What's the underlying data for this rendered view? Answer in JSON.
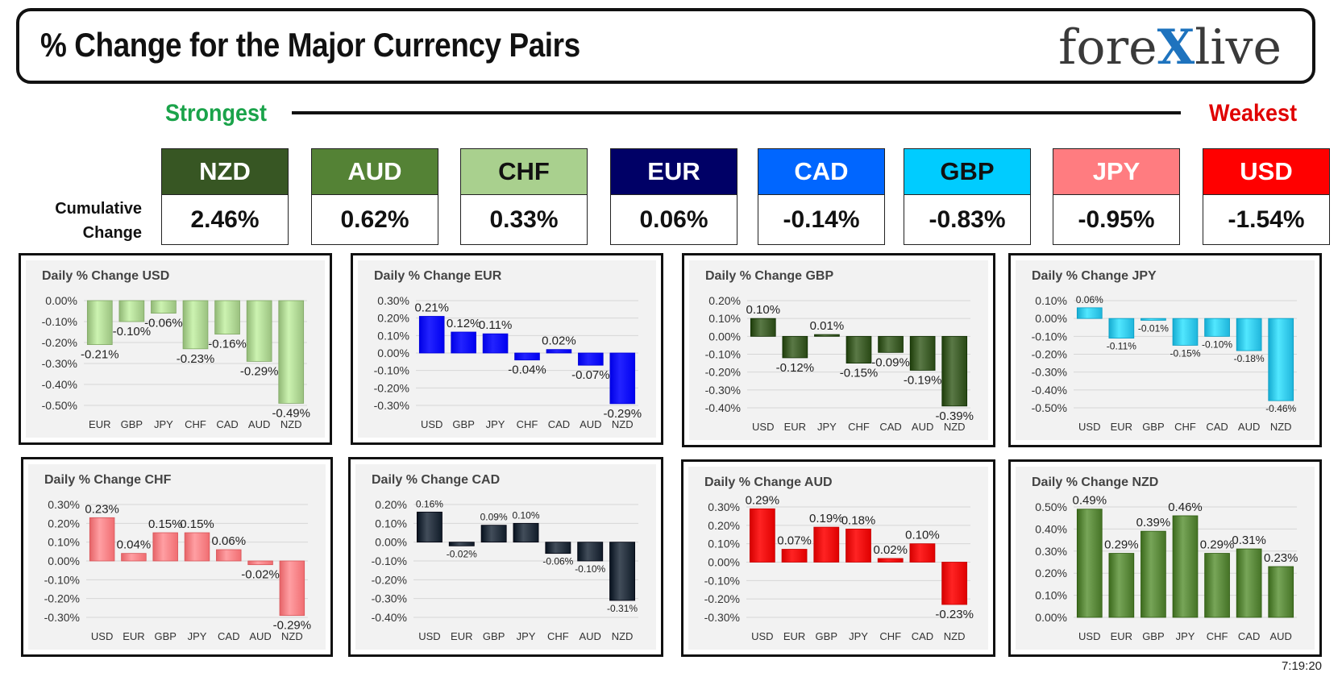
{
  "header": {
    "title": "% Change for the Major Currency Pairs",
    "logo_left": "fore",
    "logo_x": "X",
    "logo_right": "live"
  },
  "ranking": {
    "strongest_label": "Strongest",
    "weakest_label": "Weakest",
    "cumulative_label_line1": "Cumulative",
    "cumulative_label_line2": "Change",
    "currencies": [
      {
        "code": "NZD",
        "value": "2.46%",
        "bg": "#375623",
        "fg": "#ffffff"
      },
      {
        "code": "AUD",
        "value": "0.62%",
        "bg": "#548235",
        "fg": "#ffffff"
      },
      {
        "code": "CHF",
        "value": "0.33%",
        "bg": "#a9d08e",
        "fg": "#111111"
      },
      {
        "code": "EUR",
        "value": "0.06%",
        "bg": "#000066",
        "fg": "#ffffff"
      },
      {
        "code": "CAD",
        "value": "-0.14%",
        "bg": "#0066ff",
        "fg": "#ffffff"
      },
      {
        "code": "GBP",
        "value": "-0.83%",
        "bg": "#00ccff",
        "fg": "#111111"
      },
      {
        "code": "JPY",
        "value": "-0.95%",
        "bg": "#ff7c80",
        "fg": "#ffffff"
      },
      {
        "code": "USD",
        "value": "-1.54%",
        "bg": "#ff0000",
        "fg": "#ffffff"
      }
    ]
  },
  "timestamp": "7:19:20",
  "chart_data": [
    {
      "type": "bar",
      "title": "Daily % Change USD",
      "categories": [
        "EUR",
        "GBP",
        "JPY",
        "CHF",
        "CAD",
        "AUD",
        "NZD"
      ],
      "values": [
        -0.21,
        -0.1,
        -0.06,
        -0.23,
        -0.16,
        -0.29,
        -0.49
      ],
      "labels": [
        "-0.21%",
        "-0.10%",
        "-0.06%",
        "-0.23%",
        "-0.16%",
        "-0.29%",
        "-0.49%"
      ],
      "ylim": [
        -0.5,
        0.0
      ],
      "yticks": [
        0.0,
        -0.1,
        -0.2,
        -0.3,
        -0.4,
        -0.5
      ],
      "ytick_labels": [
        "0.00%",
        "-0.10%",
        "-0.20%",
        "-0.30%",
        "-0.40%",
        "-0.50%"
      ],
      "color": "#a9d08e",
      "grid": true
    },
    {
      "type": "bar",
      "title": "Daily % Change EUR",
      "categories": [
        "USD",
        "GBP",
        "JPY",
        "CHF",
        "CAD",
        "AUD",
        "NZD"
      ],
      "values": [
        0.21,
        0.12,
        0.11,
        -0.04,
        0.02,
        -0.07,
        -0.29
      ],
      "labels": [
        "0.21%",
        "0.12%",
        "0.11%",
        "-0.04%",
        "0.02%",
        "-0.07%",
        "-0.29%"
      ],
      "ylim": [
        -0.3,
        0.3
      ],
      "yticks": [
        0.3,
        0.2,
        0.1,
        0.0,
        -0.1,
        -0.2,
        -0.3
      ],
      "ytick_labels": [
        "0.30%",
        "0.20%",
        "0.10%",
        "0.00%",
        "-0.10%",
        "-0.20%",
        "-0.30%"
      ],
      "color": "#0000ff",
      "grid": true
    },
    {
      "type": "bar",
      "title": "Daily % Change GBP",
      "categories": [
        "USD",
        "EUR",
        "JPY",
        "CHF",
        "CAD",
        "AUD",
        "NZD"
      ],
      "values": [
        0.1,
        -0.12,
        0.01,
        -0.15,
        -0.09,
        -0.19,
        -0.39
      ],
      "labels": [
        "0.10%",
        "-0.12%",
        "0.01%",
        "-0.15%",
        "-0.09%",
        "-0.19%",
        "-0.39%"
      ],
      "ylim": [
        -0.4,
        0.2
      ],
      "yticks": [
        0.2,
        0.1,
        0.0,
        -0.1,
        -0.2,
        -0.3,
        -0.4
      ],
      "ytick_labels": [
        "0.20%",
        "0.10%",
        "0.00%",
        "-0.10%",
        "-0.20%",
        "-0.30%",
        "-0.40%"
      ],
      "color": "#375623",
      "grid": true
    },
    {
      "type": "bar",
      "title": "Daily % Change JPY",
      "categories": [
        "USD",
        "EUR",
        "GBP",
        "CHF",
        "CAD",
        "AUD",
        "NZD"
      ],
      "values": [
        0.06,
        -0.11,
        -0.01,
        -0.15,
        -0.1,
        -0.18,
        -0.46
      ],
      "labels": [
        "0.06%",
        "-0.11%",
        "-0.01%",
        "-0.15%",
        "-0.10%",
        "-0.18%",
        "-0.46%"
      ],
      "ylim": [
        -0.5,
        0.1
      ],
      "yticks": [
        0.1,
        0.0,
        -0.1,
        -0.2,
        -0.3,
        -0.4,
        -0.5
      ],
      "ytick_labels": [
        "0.10%",
        "0.00%",
        "-0.10%",
        "-0.20%",
        "-0.30%",
        "-0.40%",
        "-0.50%"
      ],
      "color": "#2ec4ea",
      "grid": true
    },
    {
      "type": "bar",
      "title": "Daily % Change CHF",
      "categories": [
        "USD",
        "EUR",
        "GBP",
        "JPY",
        "CAD",
        "AUD",
        "NZD"
      ],
      "values": [
        0.23,
        0.04,
        0.15,
        0.15,
        0.06,
        -0.02,
        -0.29
      ],
      "labels": [
        "0.23%",
        "0.04%",
        "0.15%",
        "0.15%",
        "0.06%",
        "-0.02%",
        "-0.29%"
      ],
      "ylim": [
        -0.3,
        0.3
      ],
      "yticks": [
        0.3,
        0.2,
        0.1,
        0.0,
        -0.1,
        -0.2,
        -0.3
      ],
      "ytick_labels": [
        "0.30%",
        "0.20%",
        "0.10%",
        "0.00%",
        "-0.10%",
        "-0.20%",
        "-0.30%"
      ],
      "color": "#ff7c80",
      "grid": true
    },
    {
      "type": "bar",
      "title": "Daily % Change CAD",
      "categories": [
        "USD",
        "EUR",
        "GBP",
        "JPY",
        "CHF",
        "AUD",
        "NZD"
      ],
      "values": [
        0.16,
        -0.02,
        0.09,
        0.1,
        -0.06,
        -0.1,
        -0.31
      ],
      "labels": [
        "0.16%",
        "-0.02%",
        "0.09%",
        "0.10%",
        "-0.06%",
        "-0.10%",
        "-0.31%"
      ],
      "ylim": [
        -0.4,
        0.2
      ],
      "yticks": [
        0.2,
        0.1,
        0.0,
        -0.1,
        -0.2,
        -0.3,
        -0.4
      ],
      "ytick_labels": [
        "0.20%",
        "0.10%",
        "0.00%",
        "-0.10%",
        "-0.20%",
        "-0.30%",
        "-0.40%"
      ],
      "color": "#1f2a37",
      "grid": true
    },
    {
      "type": "bar",
      "title": "Daily % Change AUD",
      "categories": [
        "USD",
        "EUR",
        "GBP",
        "JPY",
        "CHF",
        "CAD",
        "NZD"
      ],
      "values": [
        0.29,
        0.07,
        0.19,
        0.18,
        0.02,
        0.1,
        -0.23
      ],
      "labels": [
        "0.29%",
        "0.07%",
        "0.19%",
        "0.18%",
        "0.02%",
        "0.10%",
        "-0.23%"
      ],
      "ylim": [
        -0.3,
        0.3
      ],
      "yticks": [
        0.3,
        0.2,
        0.1,
        0.0,
        -0.1,
        -0.2,
        -0.3
      ],
      "ytick_labels": [
        "0.30%",
        "0.20%",
        "0.10%",
        "0.00%",
        "-0.10%",
        "-0.20%",
        "-0.30%"
      ],
      "color": "#ee0000",
      "grid": true
    },
    {
      "type": "bar",
      "title": "Daily % Change NZD",
      "categories": [
        "USD",
        "EUR",
        "GBP",
        "JPY",
        "CHF",
        "CAD",
        "AUD"
      ],
      "values": [
        0.49,
        0.29,
        0.39,
        0.46,
        0.29,
        0.31,
        0.23
      ],
      "labels": [
        "0.49%",
        "0.29%",
        "0.39%",
        "0.46%",
        "0.29%",
        "0.31%",
        "0.23%"
      ],
      "ylim": [
        0.0,
        0.5
      ],
      "yticks": [
        0.5,
        0.4,
        0.3,
        0.2,
        0.1,
        0.0
      ],
      "ytick_labels": [
        "0.50%",
        "0.40%",
        "0.30%",
        "0.20%",
        "0.10%",
        "0.00%"
      ],
      "color": "#548235",
      "grid": true
    }
  ]
}
